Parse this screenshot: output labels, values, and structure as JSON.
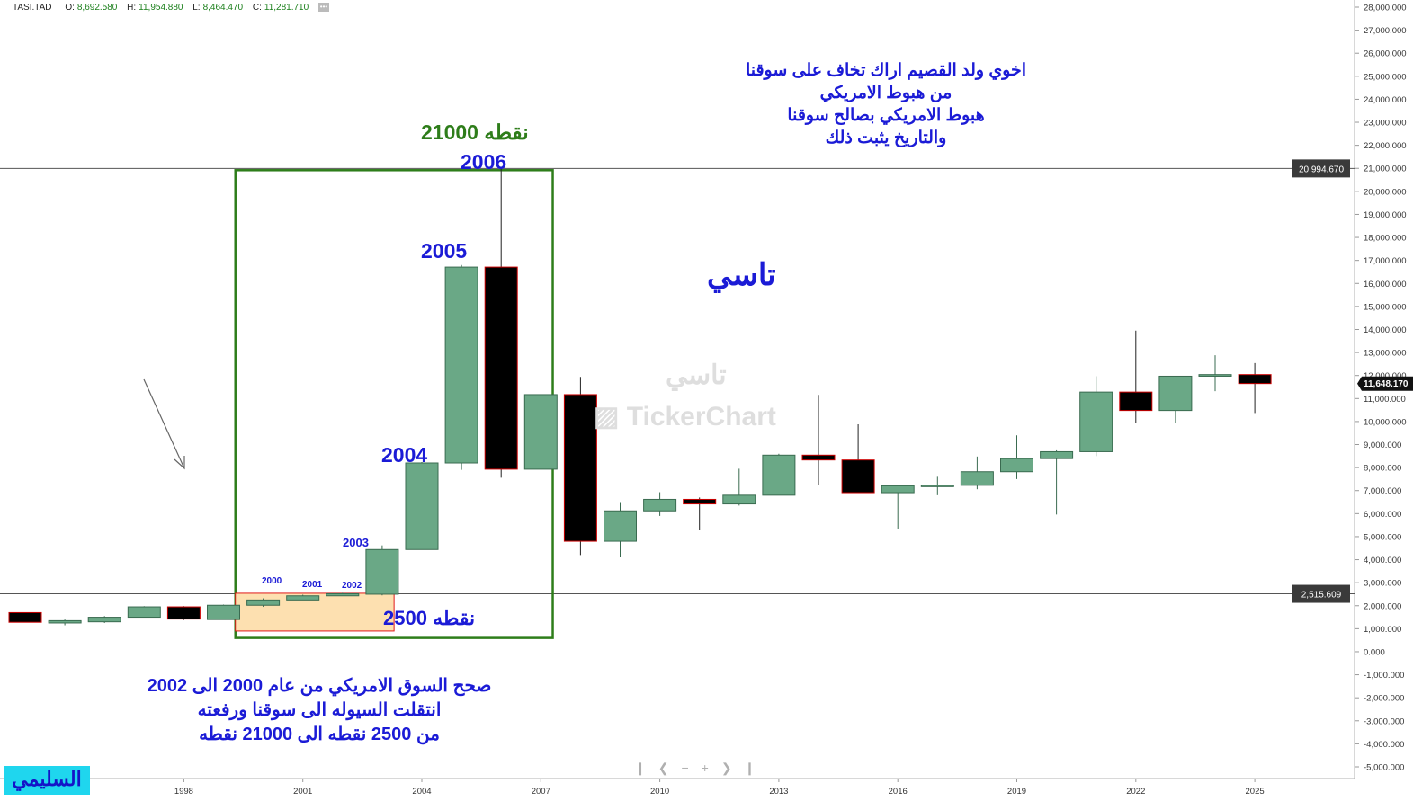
{
  "header": {
    "symbol": "TASI.TAD",
    "open_label": "O:",
    "open": "8,692.580",
    "high_label": "H:",
    "high": "11,954.880",
    "low_label": "L:",
    "low": "8,464.470",
    "close_label": "C:",
    "close": "11,281.710",
    "more_icon": "ellipsis-icon"
  },
  "watermark": {
    "brand": "TickerChart",
    "name_ar": "تاسي"
  },
  "notes": {
    "top": [
      "اخوي ولد القصيم اراك تخاف على سوقنا",
      "من هبوط الامريكي",
      "هبوط الامريكي بصالح سوقنا",
      "والتاريخ يثبت ذلك"
    ],
    "bottom": [
      "صحح السوق الامريكي من عام 2000 الى 2002",
      "انتقلت السيوله الى سوقنا ورفعته",
      "من 2500 نقطه الى 21000 نقطه"
    ],
    "center_title": "تاسي",
    "badge": "السليمي"
  },
  "annotations": {
    "peak_value": "21000",
    "peak_unit": "نقطه",
    "base_value": "2500",
    "base_unit": "نقطه",
    "year_2006": "2006",
    "year_2005": "2005",
    "year_2004": "2004",
    "year_2003": "2003",
    "year_2002": "2002",
    "year_2001": "2001",
    "year_2000": "2000"
  },
  "navigation": {
    "icons": [
      "first-page-icon",
      "scroll-left-icon",
      "zoom-out-icon",
      "zoom-in-icon",
      "scroll-right-icon",
      "last-page-icon"
    ]
  },
  "chart_data": {
    "type": "candlestick",
    "colors": {
      "up": "#6aa886",
      "down": "#000000",
      "down_border": "#cc0000",
      "line": "#555555",
      "box_green": "#2e7d1a",
      "box_red": "#e01818",
      "box_fill": "#fde0b0",
      "text_blue": "#1b1bd6",
      "text_green": "#2e7d1a"
    },
    "ylim": [
      -5300000,
      28200000
    ],
    "y_ticks": [
      28000000,
      27000000,
      26000000,
      25000000,
      24000000,
      23000000,
      22000000,
      21000000,
      20000000,
      19000000,
      18000000,
      17000000,
      16000000,
      15000000,
      14000000,
      13000000,
      12000000,
      11000000,
      10000000,
      9000000,
      8000000,
      7000000,
      6000000,
      5000000,
      4000000,
      3000000,
      2000000,
      1000000,
      0,
      -1000000,
      -2000000,
      -3000000,
      -4000000,
      -5000000
    ],
    "y_tick_labels": [
      "28,000.000",
      "27,000.000",
      "26,000.000",
      "25,000.000",
      "24,000.000",
      "23,000.000",
      "22,000.000",
      "21,000.000",
      "20,000.000",
      "19,000.000",
      "18,000.000",
      "17,000.000",
      "16,000.000",
      "15,000.000",
      "14,000.000",
      "13,000.000",
      "12,000.000",
      "11,000.000",
      "10,000.000",
      "9,000.000",
      "8,000.000",
      "7,000.000",
      "6,000.000",
      "5,000.000",
      "4,000.000",
      "3,000.000",
      "2,000.000",
      "1,000.000",
      "0.000",
      "-1,000.000",
      "-2,000.000",
      "-3,000.000",
      "-4,000.000",
      "-5,000.000"
    ],
    "x_tick_labels": [
      {
        "year": 1998,
        "label": "1998"
      },
      {
        "year": 2001,
        "label": "2001"
      },
      {
        "year": 2004,
        "label": "2004"
      },
      {
        "year": 2007,
        "label": "2007"
      },
      {
        "year": 2010,
        "label": "2010"
      },
      {
        "year": 2013,
        "label": "2013"
      },
      {
        "year": 2016,
        "label": "2016"
      },
      {
        "year": 2019,
        "label": "2019"
      },
      {
        "year": 2022,
        "label": "2022"
      },
      {
        "year": 2025,
        "label": "2025"
      }
    ],
    "candles": [
      {
        "year": 1994,
        "open": 1700000,
        "high": 1700000,
        "low": 1280000,
        "close": 1280000
      },
      {
        "year": 1995,
        "open": 1250000,
        "high": 1400000,
        "low": 1150000,
        "close": 1350000
      },
      {
        "year": 1996,
        "open": 1300000,
        "high": 1550000,
        "low": 1250000,
        "close": 1500000
      },
      {
        "year": 1997,
        "open": 1500000,
        "high": 1980000,
        "low": 1500000,
        "close": 1950000
      },
      {
        "year": 1998,
        "open": 1950000,
        "high": 1980000,
        "low": 1380000,
        "close": 1420000
      },
      {
        "year": 1999,
        "open": 1400000,
        "high": 2050000,
        "low": 1400000,
        "close": 2020000
      },
      {
        "year": 2000,
        "open": 2020000,
        "high": 2320000,
        "low": 1950000,
        "close": 2250000
      },
      {
        "year": 2001,
        "open": 2250000,
        "high": 2480000,
        "low": 2250000,
        "close": 2430000
      },
      {
        "year": 2002,
        "open": 2430000,
        "high": 2560000,
        "low": 2420000,
        "close": 2520000
      },
      {
        "year": 2003,
        "open": 2500000,
        "high": 4620000,
        "low": 2450000,
        "close": 4440000
      },
      {
        "year": 2004,
        "open": 4440000,
        "high": 8240000,
        "low": 4440000,
        "close": 8200000
      },
      {
        "year": 2005,
        "open": 8200000,
        "high": 16800000,
        "low": 7900000,
        "close": 16710000
      },
      {
        "year": 2006,
        "open": 16710000,
        "high": 20990000,
        "low": 7560000,
        "close": 7930000
      },
      {
        "year": 2007,
        "open": 7930000,
        "high": 11180000,
        "low": 7930000,
        "close": 11170000
      },
      {
        "year": 2008,
        "open": 11170000,
        "high": 11940000,
        "low": 4200000,
        "close": 4800000
      },
      {
        "year": 2009,
        "open": 4800000,
        "high": 6500000,
        "low": 4100000,
        "close": 6120000
      },
      {
        "year": 2010,
        "open": 6120000,
        "high": 6930000,
        "low": 5900000,
        "close": 6620000
      },
      {
        "year": 2011,
        "open": 6620000,
        "high": 6700000,
        "low": 5300000,
        "close": 6420000
      },
      {
        "year": 2012,
        "open": 6420000,
        "high": 7950000,
        "low": 6350000,
        "close": 6800000
      },
      {
        "year": 2013,
        "open": 6800000,
        "high": 8600000,
        "low": 6800000,
        "close": 8540000
      },
      {
        "year": 2014,
        "open": 8540000,
        "high": 11160000,
        "low": 7250000,
        "close": 8330000
      },
      {
        "year": 2015,
        "open": 8330000,
        "high": 9880000,
        "low": 6900000,
        "close": 6910000
      },
      {
        "year": 2016,
        "open": 6910000,
        "high": 7250000,
        "low": 5350000,
        "close": 7210000
      },
      {
        "year": 2017,
        "open": 7210000,
        "high": 7600000,
        "low": 6800000,
        "close": 7230000
      },
      {
        "year": 2018,
        "open": 7230000,
        "high": 8480000,
        "low": 7060000,
        "close": 7820000
      },
      {
        "year": 2019,
        "open": 7820000,
        "high": 9400000,
        "low": 7500000,
        "close": 8390000
      },
      {
        "year": 2020,
        "open": 8390000,
        "high": 8750000,
        "low": 5960000,
        "close": 8690000
      },
      {
        "year": 2021,
        "open": 8690000,
        "high": 11970000,
        "low": 8500000,
        "close": 11280000
      },
      {
        "year": 2022,
        "open": 11280000,
        "high": 13950000,
        "low": 9930000,
        "close": 10480000
      },
      {
        "year": 2023,
        "open": 10480000,
        "high": 11950000,
        "low": 9930000,
        "close": 11970000
      },
      {
        "year": 2024,
        "open": 11970000,
        "high": 12880000,
        "low": 11320000,
        "close": 12040000
      },
      {
        "year": 2025,
        "open": 12040000,
        "high": 12540000,
        "low": 10370000,
        "close": 11650000
      }
    ],
    "h_lines": [
      {
        "value": 20994670,
        "label": "20,994.670"
      },
      {
        "value": 2515609,
        "label": "2,515.609"
      }
    ],
    "last_price": {
      "value": 11648170,
      "label": "11,648.170"
    },
    "boxes": [
      {
        "name": "rally-box",
        "x0": 1999.3,
        "x1": 2007.3,
        "y0": 600000,
        "y1": 20920000,
        "style": "green"
      },
      {
        "name": "base-box",
        "x0": 1999.3,
        "x1": 2003.3,
        "y0": 900000,
        "y1": 2540000,
        "style": "red"
      }
    ]
  }
}
